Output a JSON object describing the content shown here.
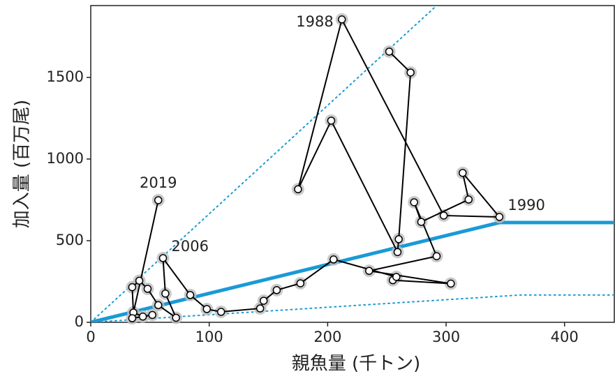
{
  "chart_data": {
    "type": "scatter",
    "xlabel": "親魚量 (千トン)",
    "ylabel": "加入量 (百万尾)",
    "xlim": [
      0,
      442
    ],
    "ylim": [
      0,
      1940
    ],
    "xticks": [
      0,
      100,
      200,
      300,
      400
    ],
    "yticks": [
      0,
      500,
      1000,
      1500
    ],
    "grid": false,
    "connect": true,
    "color": "#000000",
    "x": [
      252,
      270,
      260,
      259,
      203,
      175,
      212,
      298,
      345,
      314,
      319,
      279,
      273,
      292,
      235,
      304,
      255,
      258,
      205,
      177,
      157,
      146,
      143,
      110,
      98,
      84,
      61,
      63,
      72,
      57,
      48,
      41,
      35,
      36,
      44,
      52,
      35,
      57
    ],
    "values": [
      1658,
      1530,
      509,
      430,
      1235,
      815,
      1855,
      654,
      645,
      915,
      752,
      615,
      735,
      405,
      315,
      237,
      258,
      278,
      385,
      239,
      197,
      132,
      85,
      64,
      81,
      167,
      393,
      176,
      28,
      105,
      205,
      255,
      215,
      60,
      35,
      45,
      25,
      748
    ],
    "point_labels": [
      null,
      null,
      null,
      null,
      null,
      null,
      "1988",
      null,
      "1990",
      null,
      null,
      null,
      null,
      null,
      null,
      null,
      null,
      null,
      null,
      null,
      null,
      null,
      null,
      null,
      null,
      null,
      "2006",
      null,
      null,
      null,
      null,
      null,
      null,
      null,
      null,
      null,
      null,
      "2019"
    ],
    "lines": [
      {
        "x": [
          0,
          345,
          442
        ],
        "values": [
          0,
          611,
          611
        ],
        "color": "#1a9ad6",
        "style": "solid"
      },
      {
        "x": [
          0,
          292
        ],
        "values": [
          0,
          1940
        ],
        "color": "#1a9ad6",
        "style": "dotted"
      },
      {
        "x": [
          0,
          362,
          442
        ],
        "values": [
          0,
          167,
          167
        ],
        "color": "#1a9ad6",
        "style": "dotted"
      }
    ]
  }
}
